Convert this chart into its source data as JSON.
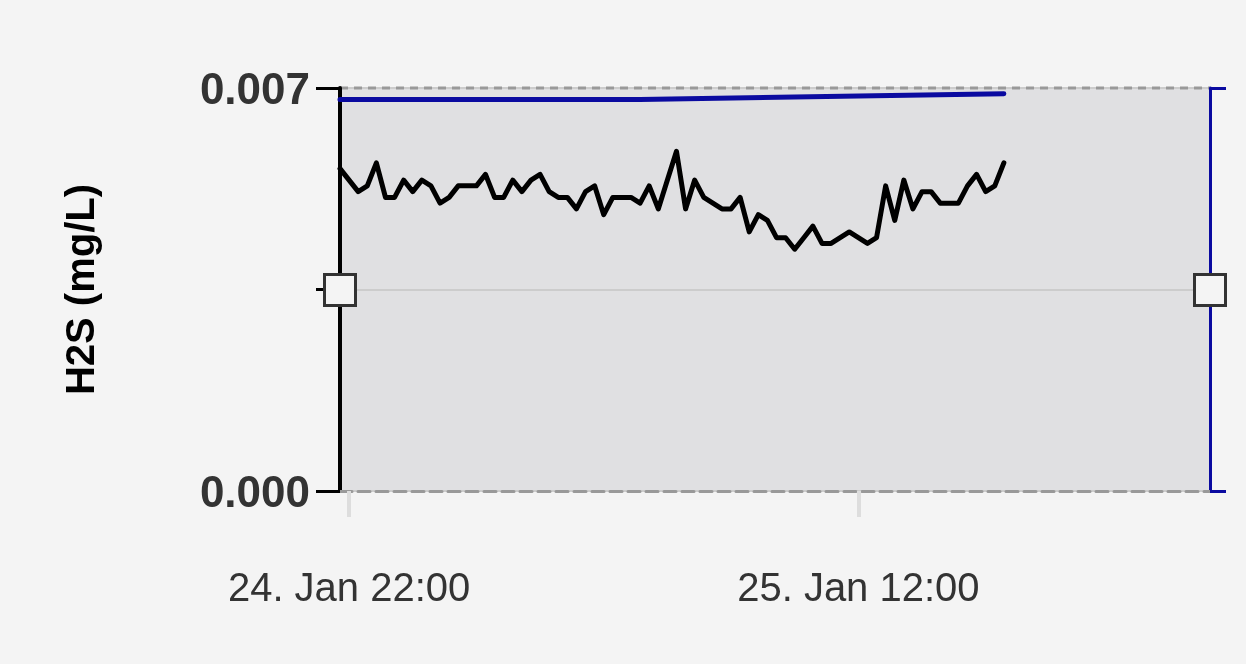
{
  "chart_data": {
    "type": "line",
    "ylabel": "H2S (mg/L)",
    "xlim": [
      "--01-24T21:45",
      "--01-25T21:40"
    ],
    "xticks": [
      {
        "value": "--01-24T22:00",
        "label": "24. Jan 22:00"
      },
      {
        "value": "--01-25T12:00",
        "label": "25. Jan 12:00"
      }
    ],
    "ylim": [
      0,
      0.007
    ],
    "yticks": [
      {
        "value": 0,
        "label": "0.000"
      },
      {
        "value": 0.0035,
        "label": null
      },
      {
        "value": 0.007,
        "label": "0.007"
      }
    ],
    "grid": "y",
    "marker": "none",
    "line_style": "solid",
    "series": [
      {
        "color": "#0a0aa0",
        "x": [
          "--01-24T21:45",
          "--01-25T06:00",
          "--01-25T16:00"
        ],
        "values": [
          0.0068,
          0.0068,
          0.0069
        ]
      },
      {
        "color": "#000000",
        "x": [
          "--01-24T21:45",
          "--01-24T22:00",
          "--01-24T22:15",
          "--01-24T22:30",
          "--01-24T22:45",
          "--01-24T23:00",
          "--01-24T23:15",
          "--01-24T23:30",
          "--01-24T23:45",
          "--01-25T00:00",
          "--01-25T00:15",
          "--01-25T00:30",
          "--01-25T00:45",
          "--01-25T01:00",
          "--01-25T01:30",
          "--01-25T01:45",
          "--01-25T02:00",
          "--01-25T02:15",
          "--01-25T02:30",
          "--01-25T02:45",
          "--01-25T03:00",
          "--01-25T03:15",
          "--01-25T03:30",
          "--01-25T03:45",
          "--01-25T04:00",
          "--01-25T04:15",
          "--01-25T04:30",
          "--01-25T04:45",
          "--01-25T05:00",
          "--01-25T05:15",
          "--01-25T05:45",
          "--01-25T06:00",
          "--01-25T06:15",
          "--01-25T06:30",
          "--01-25T06:45",
          "--01-25T07:00",
          "--01-25T07:15",
          "--01-25T07:30",
          "--01-25T07:45",
          "--01-25T08:00",
          "--01-25T08:15",
          "--01-25T08:30",
          "--01-25T08:45",
          "--01-25T09:00",
          "--01-25T09:15",
          "--01-25T09:30",
          "--01-25T09:45",
          "--01-25T10:00",
          "--01-25T10:15",
          "--01-25T10:30",
          "--01-25T10:45",
          "--01-25T11:00",
          "--01-25T11:15",
          "--01-25T11:30",
          "--01-25T11:45",
          "--01-25T12:00",
          "--01-25T12:15",
          "--01-25T12:30",
          "--01-25T12:45",
          "--01-25T13:00",
          "--01-25T13:15",
          "--01-25T13:30",
          "--01-25T13:45",
          "--01-25T14:00",
          "--01-25T14:15",
          "--01-25T14:30",
          "--01-25T14:45",
          "--01-25T15:00",
          "--01-25T15:15",
          "--01-25T15:30",
          "--01-25T15:45",
          "--01-25T16:00"
        ],
        "values": [
          0.0056,
          0.0054,
          0.0052,
          0.0053,
          0.0057,
          0.0051,
          0.0051,
          0.0054,
          0.0052,
          0.0054,
          0.0053,
          0.005,
          0.0051,
          0.0053,
          0.0053,
          0.0055,
          0.0051,
          0.0051,
          0.0054,
          0.0052,
          0.0054,
          0.0055,
          0.0052,
          0.0051,
          0.0051,
          0.0049,
          0.0052,
          0.0053,
          0.0048,
          0.0051,
          0.0051,
          0.005,
          0.0053,
          0.0049,
          0.0054,
          0.0059,
          0.0049,
          0.0054,
          0.0051,
          0.005,
          0.0049,
          0.0049,
          0.0051,
          0.0045,
          0.0048,
          0.0047,
          0.0044,
          0.0044,
          0.0042,
          0.0044,
          0.0046,
          0.0043,
          0.0043,
          0.0044,
          0.0045,
          0.0044,
          0.0043,
          0.0044,
          0.0053,
          0.0047,
          0.0054,
          0.0049,
          0.0052,
          0.0052,
          0.005,
          0.005,
          0.005,
          0.0053,
          0.0055,
          0.0052,
          0.0053,
          0.0057
        ]
      }
    ]
  }
}
